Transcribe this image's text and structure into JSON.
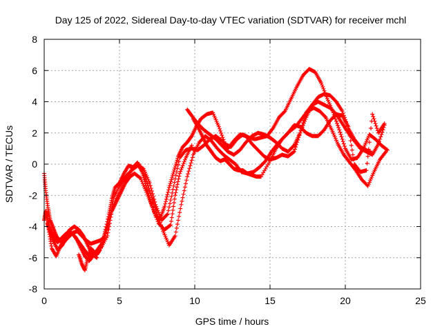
{
  "chart_data": {
    "type": "scatter",
    "title": "Day 125 of 2022, Sidereal Day-to-day VTEC variation (SDTVAR) for receiver mchl",
    "xlabel": "GPS time / hours",
    "ylabel": "SDTVAR / TECUs",
    "xlim": [
      0,
      25
    ],
    "ylim": [
      -8,
      8
    ],
    "xticks": [
      "0",
      "5",
      "10",
      "15",
      "20",
      "25"
    ],
    "yticks": [
      "-8",
      "-6",
      "-4",
      "-2",
      "0",
      "2",
      "4",
      "6",
      "8"
    ],
    "grid": true,
    "marker": "plus",
    "color": "#ff0000",
    "series": [
      {
        "x": [
          0.0,
          0.1,
          0.2,
          0.3,
          0.5,
          0.7,
          0.9,
          1.1,
          1.4,
          1.7,
          2.0,
          2.3,
          2.6,
          2.9,
          3.2,
          3.5,
          3.8,
          4.0,
          4.3,
          4.5,
          4.7,
          5.0,
          5.3,
          5.6,
          5.9,
          6.2,
          6.5,
          6.8,
          7.1,
          7.4,
          7.7,
          8.0,
          8.3,
          8.6,
          8.9,
          9.2,
          9.5,
          9.8,
          10.1,
          10.4,
          10.8,
          11.2,
          11.6,
          12.0,
          12.4,
          12.8,
          13.2,
          13.6,
          14.0,
          14.4,
          14.8,
          15.2,
          15.6,
          16.0,
          16.4,
          16.8,
          17.2,
          17.6,
          18.0,
          18.4,
          18.8,
          19.2,
          19.6,
          20.0,
          20.4,
          20.8,
          21.2,
          21.6,
          22.0,
          22.4,
          22.8
        ],
        "y": [
          -3.6,
          -3.0,
          -3.4,
          -4.0,
          -4.4,
          -4.8,
          -5.0,
          -4.8,
          -4.5,
          -4.3,
          -4.6,
          -5.0,
          -5.4,
          -5.8,
          -5.9,
          -5.6,
          -5.3,
          -4.5,
          -3.2,
          -2.2,
          -1.5,
          -1.2,
          -0.6,
          -0.1,
          -0.2,
          0.1,
          -0.5,
          -1.5,
          -2.5,
          -3.3,
          -3.5,
          -2.7,
          -1.5,
          -0.5,
          0.5,
          1.1,
          1.4,
          1.8,
          2.4,
          2.9,
          3.2,
          3.3,
          2.4,
          1.3,
          1.1,
          1.6,
          1.9,
          1.7,
          1.6,
          1.7,
          1.8,
          2.3,
          3.0,
          3.4,
          4.2,
          5.0,
          5.7,
          6.1,
          5.9,
          5.2,
          4.2,
          3.3,
          2.2,
          1.0,
          0.3,
          0.4,
          1.0,
          1.9,
          1.6,
          1.2,
          0.9
        ]
      },
      {
        "x": [
          0.2,
          0.4,
          0.6,
          0.9,
          1.2,
          1.5,
          1.8,
          2.1,
          2.4,
          2.7,
          3.0,
          3.3,
          3.6,
          3.9,
          4.3,
          4.7,
          5.1,
          5.5,
          5.9,
          6.3,
          6.7,
          7.1,
          7.5,
          7.9,
          8.3,
          8.7,
          9.1,
          9.5,
          9.9,
          10.3,
          10.7,
          11.1,
          11.5,
          11.9,
          12.3,
          12.7,
          13.1,
          13.5,
          13.9,
          14.3,
          14.7,
          15.1,
          15.5,
          15.9,
          16.3,
          16.7,
          17.1,
          17.5,
          17.9,
          18.3,
          18.7,
          19.1,
          19.5,
          19.9,
          20.3,
          20.7,
          21.1,
          21.5,
          21.9,
          22.3,
          22.7
        ],
        "y": [
          -3.8,
          -4.4,
          -4.9,
          -5.5,
          -5.2,
          -4.7,
          -4.4,
          -4.7,
          -5.3,
          -5.9,
          -6.2,
          -5.8,
          -5.4,
          -5.0,
          -3.5,
          -2.4,
          -1.6,
          -0.9,
          -0.2,
          0.0,
          -0.8,
          -2.0,
          -3.2,
          -4.3,
          -5.2,
          -4.6,
          -2.6,
          -0.8,
          0.6,
          1.4,
          1.8,
          1.5,
          1.0,
          0.6,
          0.3,
          0.0,
          -0.5,
          -0.6,
          -0.5,
          -0.2,
          0.2,
          0.8,
          1.3,
          1.7,
          2.1,
          2.4,
          2.9,
          3.4,
          3.6,
          3.4,
          3.0,
          2.2,
          1.3,
          0.6,
          0.1,
          -0.4,
          -1.0,
          -1.4,
          -0.5,
          0.3,
          0.8
        ]
      },
      {
        "x": [
          0.3,
          0.5,
          0.8,
          1.1,
          1.4,
          1.7,
          2.0,
          2.3,
          2.6,
          2.9,
          3.2,
          3.5,
          9.5,
          9.8,
          10.2,
          10.6,
          11.0,
          11.4,
          11.8,
          12.2,
          12.6,
          13.0,
          13.4,
          13.8,
          14.2,
          14.6,
          15.0,
          15.4,
          15.8,
          16.2,
          16.6,
          17.0,
          17.4,
          17.8,
          18.2,
          18.6,
          19.0,
          19.4,
          19.8,
          20.2,
          20.6,
          21.0,
          21.4,
          21.8,
          22.2,
          22.6
        ],
        "y": [
          -4.2,
          -5.4,
          -5.9,
          -5.2,
          -4.6,
          -4.2,
          -4.0,
          -4.2,
          -4.6,
          -5.2,
          -5.8,
          -6.0,
          3.5,
          3.1,
          2.6,
          2.2,
          1.9,
          1.6,
          1.2,
          0.8,
          0.6,
          0.9,
          1.4,
          1.8,
          2.0,
          1.9,
          1.7,
          1.4,
          1.0,
          0.8,
          1.2,
          2.0,
          3.0,
          3.8,
          4.0,
          3.8,
          3.6,
          3.2,
          2.6,
          2.0,
          1.5,
          1.0,
          0.8,
          0.6,
          1.3,
          2.5
        ]
      },
      {
        "x": [
          0.0,
          0.1,
          0.25,
          0.4,
          0.6,
          0.8,
          1.0,
          1.3,
          1.6,
          1.9,
          2.2,
          2.5,
          2.8,
          3.1,
          3.4,
          3.7,
          4.0,
          4.3,
          4.6,
          5.0,
          5.4,
          5.8,
          6.2,
          6.6,
          7.0,
          7.4,
          7.8,
          8.2,
          8.6,
          9.0,
          9.4,
          9.8,
          10.2,
          10.6,
          11.0,
          11.4,
          11.8,
          12.2,
          12.6,
          13.0,
          13.4,
          13.8,
          14.2,
          14.6,
          15.0,
          15.4,
          15.8,
          16.2,
          16.6,
          17.0,
          17.4,
          17.8,
          18.2,
          18.6,
          19.0,
          19.4,
          19.8,
          20.2,
          20.6,
          21.0,
          21.4,
          21.8
        ],
        "y": [
          -0.6,
          -1.7,
          -2.8,
          -3.6,
          -4.1,
          -4.6,
          -4.9,
          -5.0,
          -4.7,
          -4.4,
          -4.3,
          -4.6,
          -4.9,
          -5.1,
          -5.0,
          -4.9,
          -4.7,
          -3.8,
          -2.2,
          -1.4,
          -0.8,
          -0.4,
          -0.1,
          -0.3,
          -1.2,
          -2.6,
          -3.6,
          -3.2,
          -1.4,
          0.4,
          0.9,
          1.0,
          0.9,
          1.2,
          1.6,
          1.8,
          1.5,
          1.0,
          1.5,
          1.9,
          1.8,
          1.3,
          0.9,
          0.5,
          0.3,
          0.4,
          0.6,
          0.5,
          0.8,
          2.0,
          3.3,
          3.8,
          4.3,
          4.5,
          4.4,
          4.0,
          3.4,
          2.3,
          1.6,
          1.1,
          0.9,
          0.7
        ]
      },
      {
        "x": [
          9.9,
          10.2,
          10.5,
          10.8,
          11.1,
          11.4,
          11.7,
          12.0,
          12.3,
          12.6,
          12.9,
          13.2,
          13.5,
          13.8,
          14.1,
          14.4,
          15.0,
          15.4,
          15.8,
          16.2,
          16.6,
          17.0,
          17.4,
          17.8,
          18.2,
          18.6,
          19.0,
          19.4,
          19.8,
          20.2,
          20.6,
          21.0,
          21.4,
          21.8,
          22.2,
          22.6
        ],
        "y": [
          2.9,
          2.4,
          1.8,
          1.2,
          0.8,
          0.4,
          0.2,
          0.3,
          0.0,
          -0.3,
          -0.4,
          -0.4,
          -0.6,
          -0.7,
          -0.8,
          -0.8,
          0.2,
          1.0,
          1.6,
          2.0,
          2.5,
          2.4,
          2.0,
          1.8,
          1.8,
          2.2,
          2.8,
          3.2,
          3.1,
          2.4,
          0.0,
          -0.5,
          -0.4,
          3.2,
          2.0,
          2.6
        ]
      },
      {
        "x": [
          2.3,
          2.5,
          2.7,
          2.9,
          3.1,
          3.3,
          3.5,
          3.7,
          4.2,
          4.5,
          4.8,
          5.1,
          5.4,
          5.7,
          6.0,
          6.4,
          6.8,
          7.2,
          7.6,
          8.0,
          8.4,
          8.7,
          9.0,
          9.4,
          9.8
        ],
        "y": [
          -5.8,
          -6.4,
          -6.8,
          -6.0,
          -5.4,
          -5.6,
          -5.8,
          -5.5,
          -4.6,
          -3.0,
          -2.4,
          -1.8,
          -1.2,
          -0.8,
          -0.6,
          -0.9,
          -1.8,
          -2.8,
          -3.8,
          -4.2,
          -3.9,
          -2.0,
          -0.6,
          0.4,
          1.2
        ]
      }
    ]
  }
}
